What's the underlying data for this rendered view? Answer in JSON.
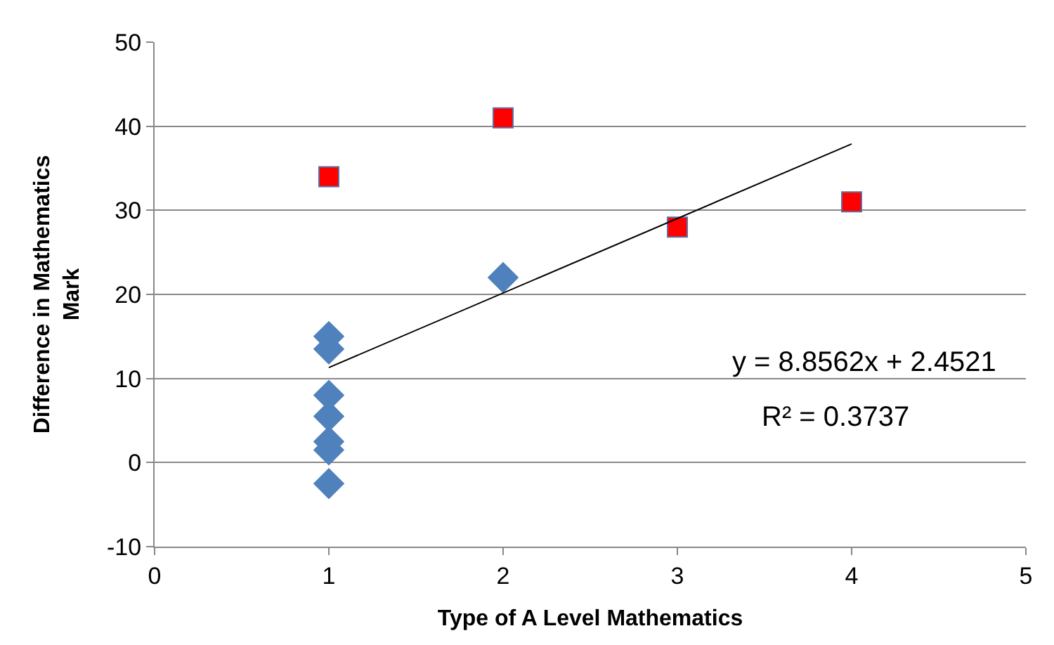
{
  "chart_data": {
    "type": "scatter",
    "xlabel": "Type of A Level Mathematics",
    "ylabel": "Difference in Mathematics Mark",
    "xlim": [
      0,
      5
    ],
    "xticks": [
      0,
      1,
      2,
      3,
      4,
      5
    ],
    "ylim": [
      -10,
      50
    ],
    "yticks": [
      -10,
      0,
      10,
      20,
      30,
      40,
      50
    ],
    "grid": "y",
    "series": [
      {
        "marker": "diamond",
        "color": "#4f81bd",
        "x": [
          1,
          1,
          1,
          1,
          1,
          1,
          1,
          2
        ],
        "values": [
          15,
          13.5,
          8,
          5.5,
          2.5,
          1.5,
          -2.5,
          22
        ]
      },
      {
        "marker": "square",
        "color": "#ff0000",
        "x": [
          1,
          2,
          3,
          4
        ],
        "values": [
          34,
          41,
          28,
          31
        ]
      },
      {
        "type": "line",
        "marker": "none",
        "color": "#000000",
        "x": [
          1,
          4
        ],
        "values": [
          11.3,
          37.9
        ]
      }
    ],
    "annotations": [
      "y = 8.8562x + 2.4521",
      "R² = 0.3737"
    ]
  }
}
